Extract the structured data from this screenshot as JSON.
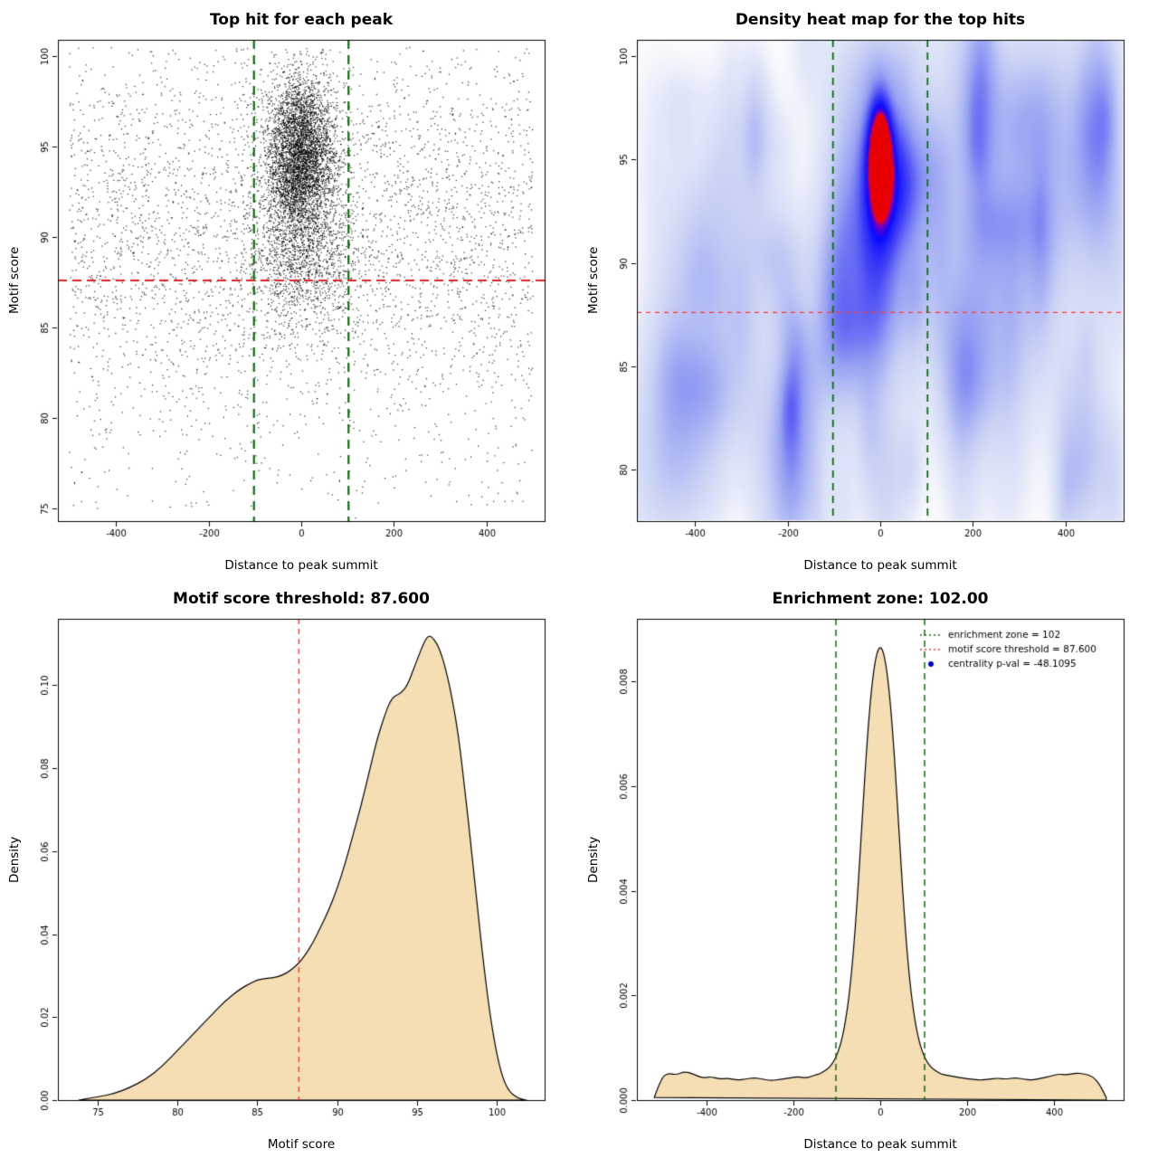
{
  "stats": {
    "motif_score_threshold": "87.600",
    "enrichment_zone": "102.00",
    "centrality_p_val": "-48.1095"
  },
  "panels": [
    {
      "title": "Top hit for each peak",
      "xlabel": "Distance to peak summit",
      "ylabel": "Motif score"
    },
    {
      "title": "Density heat map for the top hits",
      "xlabel": "Distance to peak summit",
      "ylabel": "Motif score"
    },
    {
      "title": "Motif score threshold: 87.600",
      "xlabel": "Motif score",
      "ylabel": "Density"
    },
    {
      "title": "Enrichment zone: 102.00",
      "xlabel": "Distance to peak summit",
      "ylabel": "Density"
    }
  ],
  "chart_data": [
    {
      "type": "scatter",
      "title": "Top hit for each peak",
      "xlabel": "Distance to peak summit",
      "ylabel": "Motif score",
      "xlim": [
        -525,
        525
      ],
      "ylim": [
        74.3,
        100.9
      ],
      "xticks": [
        -400,
        -200,
        0,
        200,
        400
      ],
      "yticks": [
        75,
        80,
        85,
        90,
        95,
        100
      ],
      "xdec": 0,
      "ydec": 0,
      "point_color": "#000000",
      "point_ymax": 100.5,
      "seed": 12345,
      "hline": {
        "y": 87.6,
        "color": "#e02020",
        "dash": [
          10,
          6
        ],
        "width": 2
      },
      "vlines": {
        "x": [
          -102,
          102
        ],
        "color": "#0b6e0b",
        "dash": [
          10,
          7
        ],
        "width": 2.2
      },
      "clusters": [
        {
          "n": 3200,
          "xdist": "uniform",
          "xa": -500,
          "xb": 500,
          "ydist": "normal",
          "ym": 90.5,
          "ysd": 5.5
        },
        {
          "n": 700,
          "xdist": "uniform",
          "xa": -500,
          "xb": 500,
          "ydist": "uniform",
          "ya": 75,
          "yb": 100.4
        },
        {
          "n": 4300,
          "xdist": "normal",
          "xm": 0,
          "xsd": 36,
          "ydist": "normal",
          "ym": 94.6,
          "ysd": 2.1
        },
        {
          "n": 1500,
          "xdist": "normal",
          "xm": 0,
          "xsd": 60,
          "ydist": "normal",
          "ym": 89.4,
          "ysd": 2.4
        }
      ]
    },
    {
      "type": "heatmap",
      "title": "Density heat map for the top hits",
      "xlabel": "Distance to peak summit",
      "ylabel": "Motif score",
      "xlim": [
        -525,
        525
      ],
      "ylim": [
        77.5,
        100.8
      ],
      "xticks": [
        -400,
        -200,
        0,
        200,
        400
      ],
      "yticks": [
        80,
        85,
        90,
        95,
        100
      ],
      "xdec": 0,
      "ydec": 0,
      "hline": {
        "y": 87.6,
        "color": "#ff3b3b",
        "dash": [
          5,
          5
        ],
        "width": 1.3
      },
      "vlines": {
        "x": [
          -102,
          102
        ],
        "color": "#0b6e0b",
        "dash": [
          8,
          6
        ],
        "width": 1.8
      },
      "kernels": [
        {
          "x": 0,
          "y": 95.2,
          "sx": 16,
          "sy": 1.7,
          "w": 1.6
        },
        {
          "x": 0,
          "y": 94.2,
          "sx": 30,
          "sy": 2.6,
          "w": 0.7
        },
        {
          "x": 0,
          "y": 93.0,
          "sx": 55,
          "sy": 3.8,
          "w": 0.3
        },
        {
          "x": 0,
          "y": 87.8,
          "sx": 75,
          "sy": 1.7,
          "w": 0.14
        }
      ],
      "noise": {
        "n": 150,
        "wmin": 0.04,
        "wmax": 0.16,
        "seed": 7
      },
      "dmax": 1.7,
      "colormap": [
        [
          0,
          255,
          255,
          255
        ],
        [
          0.06,
          228,
          233,
          249
        ],
        [
          0.18,
          200,
          209,
          245
        ],
        [
          0.35,
          150,
          160,
          243
        ],
        [
          0.55,
          70,
          70,
          246
        ],
        [
          0.75,
          10,
          10,
          255
        ],
        [
          0.87,
          120,
          0,
          190
        ],
        [
          0.93,
          255,
          0,
          0
        ],
        [
          1,
          232,
          0,
          0
        ]
      ]
    },
    {
      "type": "area",
      "title": "Motif score threshold: 87.600",
      "xlabel": "Motif score",
      "ylabel": "Density",
      "xlim": [
        72.5,
        103
      ],
      "ylim": [
        0,
        0.116
      ],
      "xticks": [
        75,
        80,
        85,
        90,
        95,
        100
      ],
      "yticks": [
        0,
        0.02,
        0.04,
        0.06,
        0.08,
        0.1
      ],
      "xdec": 0,
      "ydec": 2,
      "fill": "#f5deb3",
      "vlines": {
        "x": [
          87.6
        ],
        "color": "#e03c3c",
        "dash": [
          6,
          5
        ],
        "width": 1.3
      },
      "x": [
        73.8,
        75,
        76,
        77,
        78,
        79,
        80,
        81,
        82,
        83,
        84,
        84.5,
        85,
        85.5,
        86,
        86.5,
        87,
        87.6,
        88,
        88.5,
        89,
        89.5,
        90,
        90.5,
        91,
        91.5,
        92,
        92.5,
        93,
        93.3,
        93.6,
        94,
        94.4,
        94.8,
        95.1,
        95.4,
        95.7,
        96,
        96.4,
        96.8,
        97.2,
        97.6,
        98,
        98.4,
        98.8,
        99.2,
        99.6,
        100,
        100.4,
        100.8,
        101.3,
        101.8
      ],
      "y": [
        0,
        0.0008,
        0.0015,
        0.003,
        0.005,
        0.008,
        0.012,
        0.016,
        0.02,
        0.024,
        0.027,
        0.028,
        0.029,
        0.0293,
        0.0295,
        0.03,
        0.031,
        0.033,
        0.035,
        0.038,
        0.042,
        0.046,
        0.051,
        0.057,
        0.064,
        0.071,
        0.079,
        0.087,
        0.093,
        0.096,
        0.0975,
        0.098,
        0.1,
        0.104,
        0.107,
        0.11,
        0.112,
        0.1115,
        0.109,
        0.104,
        0.097,
        0.088,
        0.075,
        0.061,
        0.046,
        0.032,
        0.02,
        0.011,
        0.005,
        0.002,
        0.0005,
        0
      ]
    },
    {
      "type": "area",
      "title": "Enrichment zone: 102.00",
      "xlabel": "Distance to peak summit",
      "ylabel": "Density",
      "xlim": [
        -560,
        560
      ],
      "ylim": [
        0,
        0.0092
      ],
      "xticks": [
        -400,
        -200,
        0,
        200,
        400
      ],
      "yticks": [
        0,
        0.002,
        0.004,
        0.006,
        0.008
      ],
      "xdec": 0,
      "ydec": 3,
      "fill": "#f5deb3",
      "vlines": {
        "x": [
          -102,
          102
        ],
        "color": "#0b6e0b",
        "dash": [
          7,
          5
        ],
        "width": 1.5
      },
      "legend": [
        {
          "symbol": "dotted-line",
          "color": "#0b6e0b",
          "label": "enrichment zone = 102"
        },
        {
          "symbol": "dotted-line",
          "color": "#e03c3c",
          "label": "motif score threshold = 87.600"
        },
        {
          "symbol": "point",
          "color": "#0000cd",
          "label": "centrality p-val = -48.1095"
        }
      ],
      "x": [
        -520,
        -505,
        -490,
        -470,
        -450,
        -430,
        -410,
        -390,
        -370,
        -350,
        -330,
        -310,
        -290,
        -270,
        -250,
        -230,
        -210,
        -190,
        -170,
        -150,
        -140,
        -130,
        -120,
        -110,
        -100,
        -90,
        -80,
        -70,
        -60,
        -50,
        -40,
        -30,
        -20,
        -10,
        0,
        10,
        20,
        30,
        40,
        50,
        60,
        70,
        80,
        90,
        100,
        110,
        120,
        130,
        140,
        150,
        170,
        190,
        210,
        230,
        250,
        270,
        290,
        310,
        330,
        350,
        370,
        390,
        410,
        430,
        450,
        470,
        490,
        505,
        520
      ],
      "y": [
        5e-05,
        0.0004,
        0.00052,
        0.00048,
        0.00055,
        0.0005,
        0.00042,
        0.00045,
        0.0004,
        0.00042,
        0.00038,
        0.0004,
        0.00043,
        0.0004,
        0.00037,
        0.0004,
        0.00042,
        0.00045,
        0.00042,
        0.00048,
        0.0005,
        0.00055,
        0.0006,
        0.0007,
        0.00085,
        0.0011,
        0.0015,
        0.0021,
        0.003,
        0.0042,
        0.0056,
        0.0069,
        0.0079,
        0.0085,
        0.0087,
        0.0085,
        0.0079,
        0.0069,
        0.0056,
        0.0042,
        0.003,
        0.0021,
        0.0015,
        0.0011,
        0.00085,
        0.0007,
        0.0006,
        0.00055,
        0.0005,
        0.00048,
        0.00045,
        0.00042,
        0.0004,
        0.00038,
        0.0004,
        0.00042,
        0.0004,
        0.00043,
        0.0004,
        0.00038,
        0.00042,
        0.00045,
        0.0005,
        0.00048,
        0.00052,
        0.0005,
        0.00045,
        0.0003,
        5e-05
      ]
    }
  ]
}
